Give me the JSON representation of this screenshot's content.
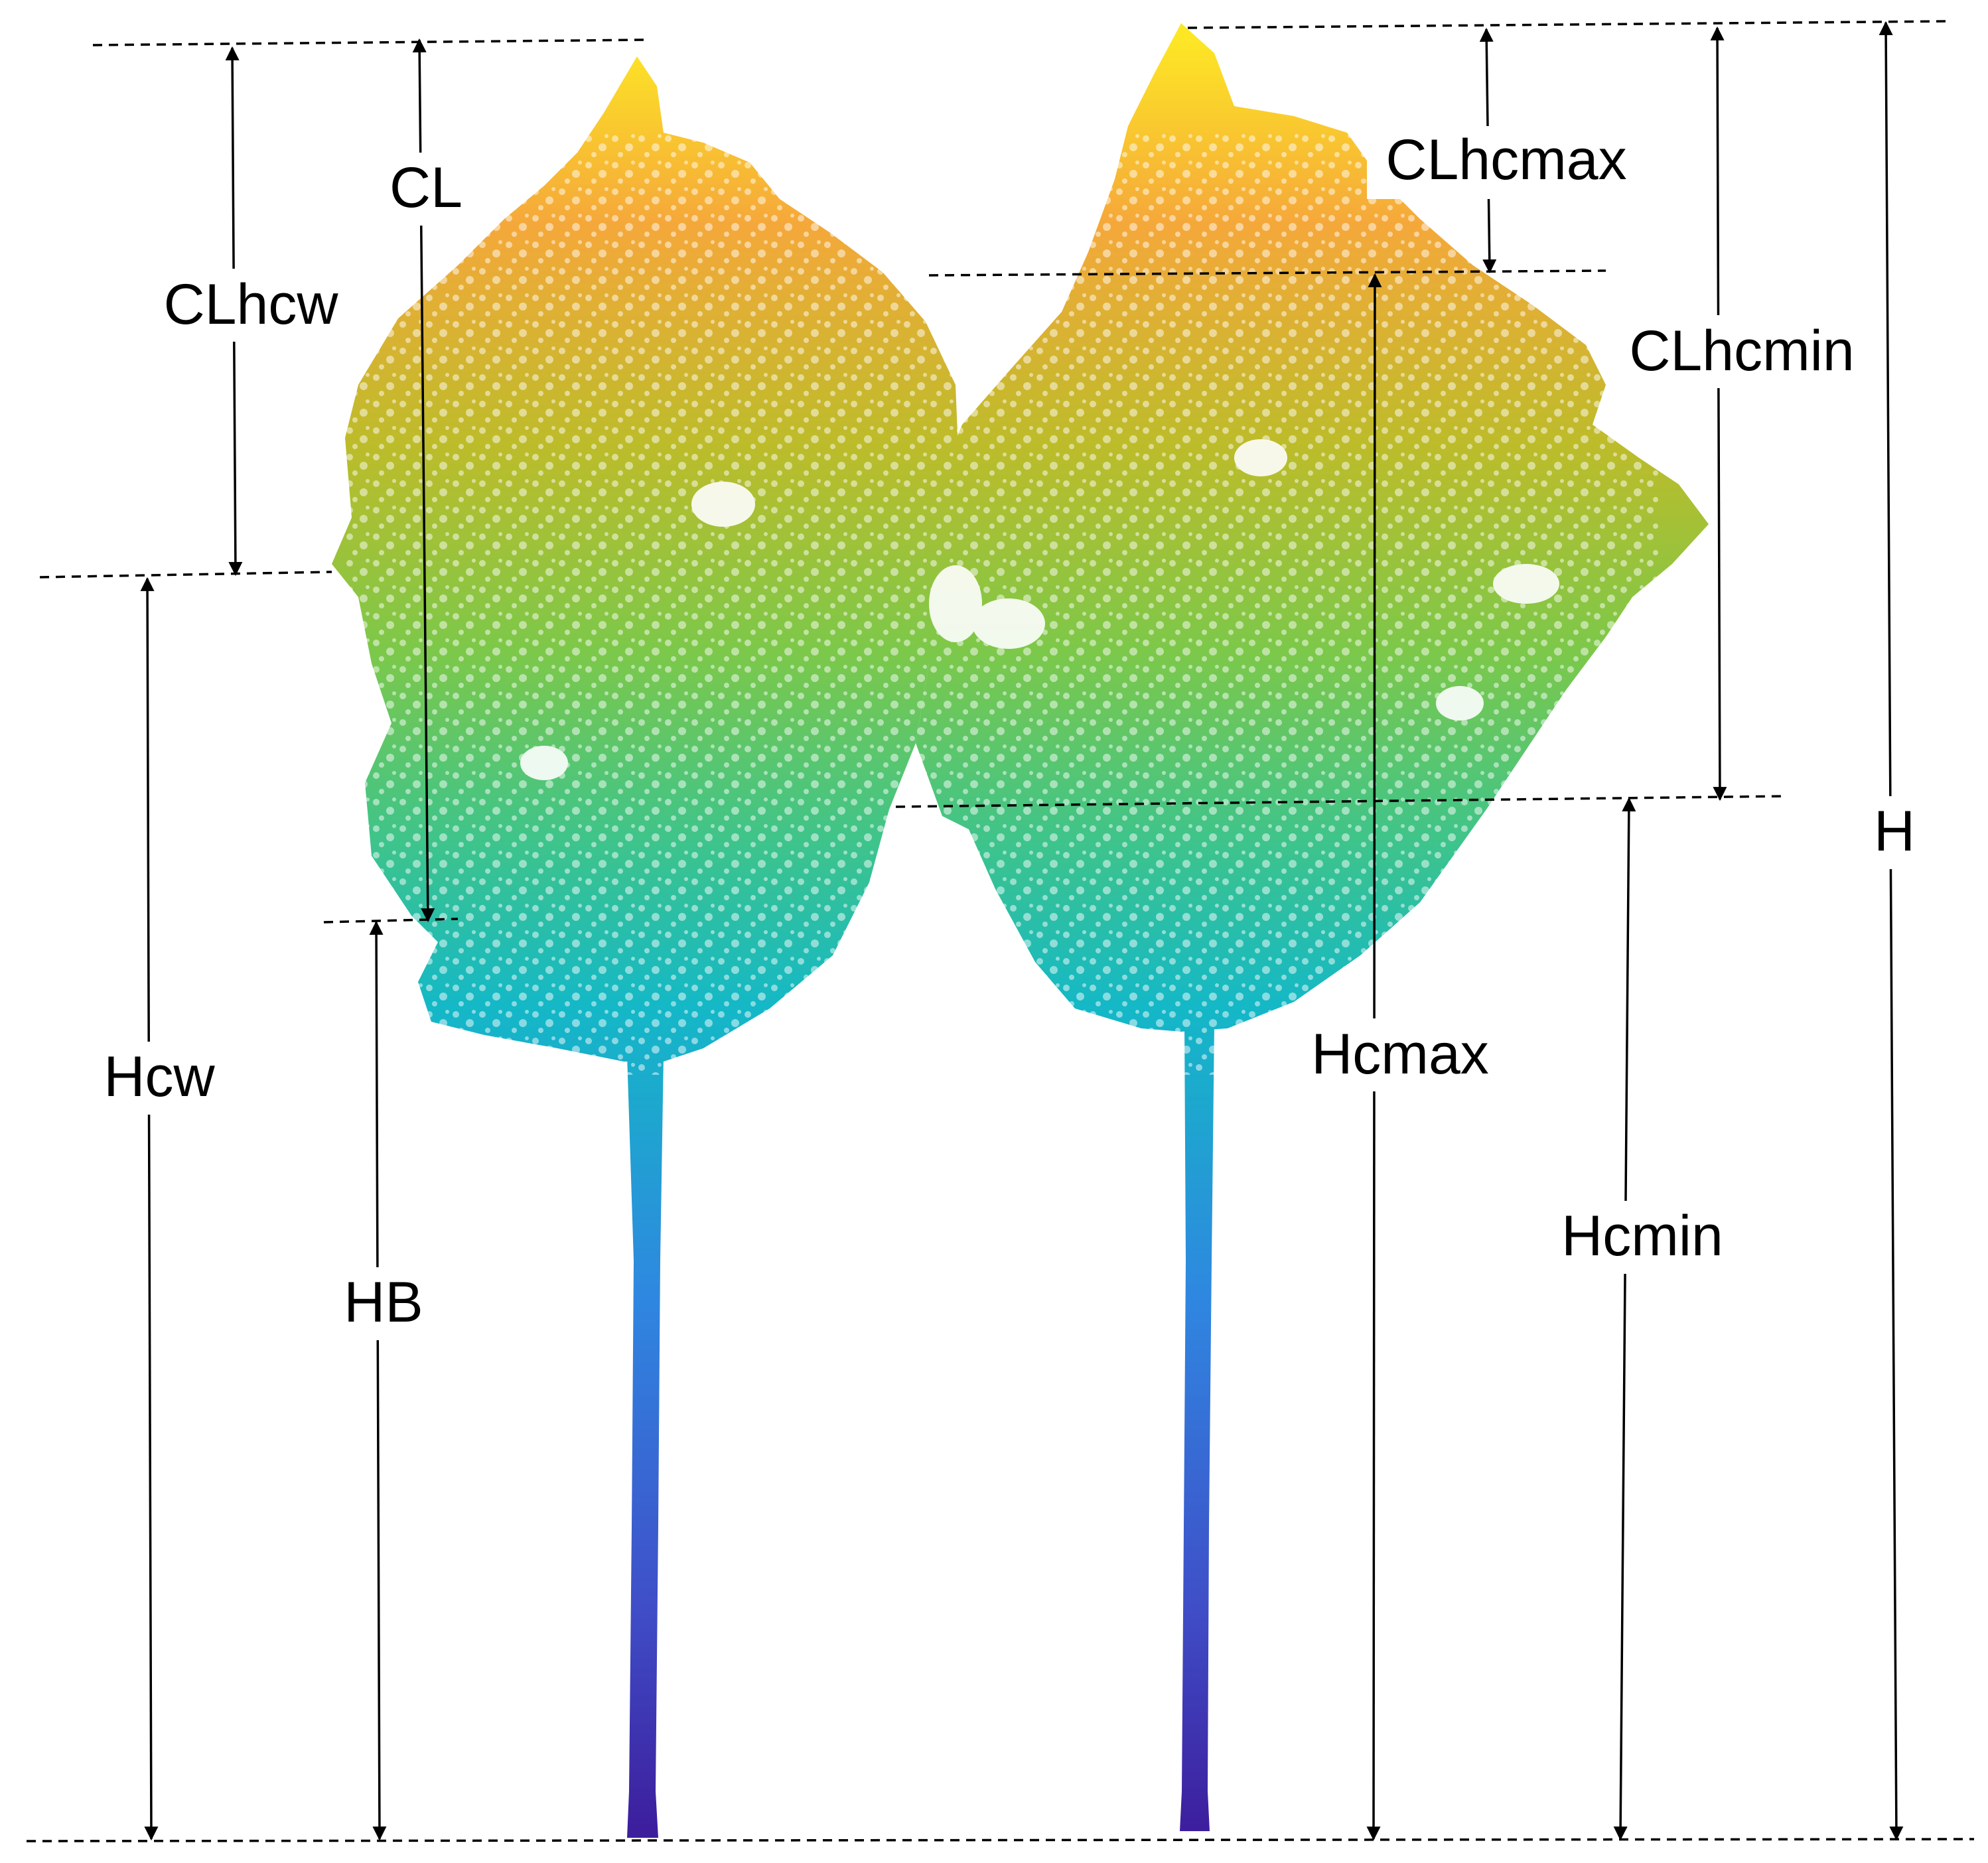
{
  "labels": {
    "cl": "CL",
    "clhcw": "CLhcw",
    "clhcmax": "CLhcmax",
    "clhcmin": "CLhcmin",
    "hcw": "Hcw",
    "hb": "HB",
    "hcmax": "Hcmax",
    "hcmin": "Hcmin",
    "h": "H"
  },
  "colors": {
    "line": "#000000",
    "canopy_top": "#fde725",
    "canopy_orange": "#f5a83a",
    "canopy_olive": "#bcbc2a",
    "canopy_green": "#7cc84a",
    "canopy_teal": "#22b8b0",
    "trunk_top": "#28a6dc",
    "trunk_bottom": "#3d1f9e"
  },
  "figure": {
    "subject": "two tree point clouds with crown height measurements"
  }
}
